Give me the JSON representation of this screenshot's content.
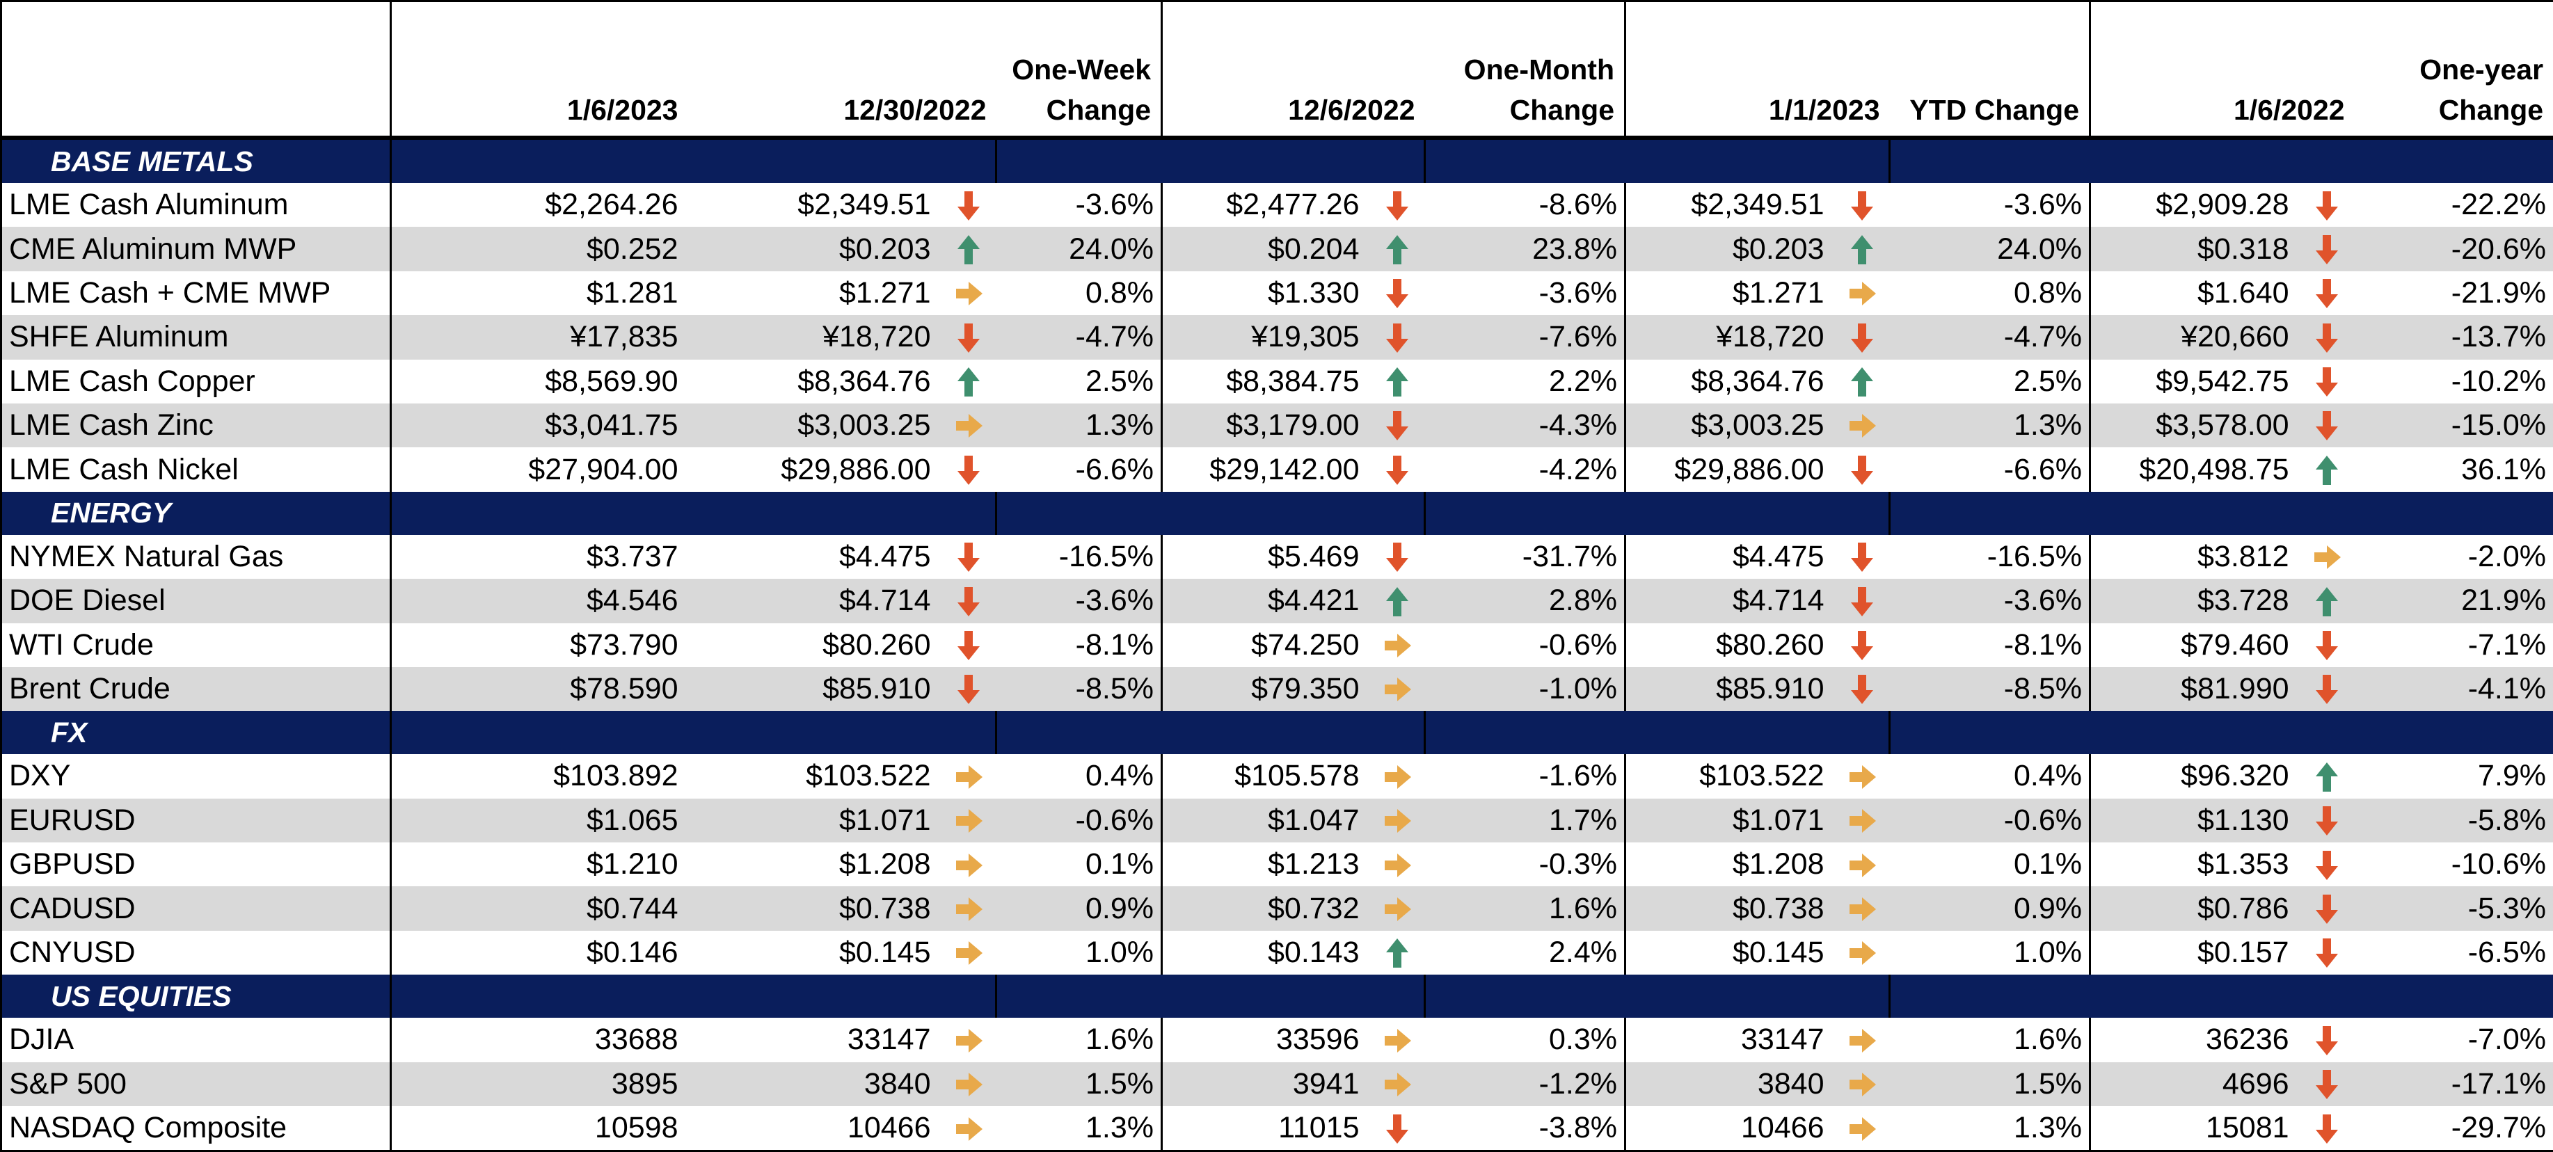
{
  "headers": {
    "col1": "1/6/2023",
    "col2": "12/30/2022",
    "col3_l1": "One-Week",
    "col3_l2": "Change",
    "col4": "12/6/2022",
    "col5_l1": "One-Month",
    "col5_l2": "Change",
    "col6": "1/1/2023",
    "col7": "YTD Change",
    "col8": "1/6/2022",
    "col9_l1": "One-year",
    "col9_l2": "Change"
  },
  "colors": {
    "navy": "#0a1e5c",
    "down": "#e0532b",
    "up": "#3f8f6e",
    "flat": "#e8a94a",
    "band": "#d9d9d9"
  },
  "sections": [
    {
      "title": "BASE METALS",
      "rows": [
        {
          "name": "LME Cash Aluminum",
          "v1": "$2,264.26",
          "v2": "$2,349.51",
          "a1": "down",
          "p1": "-3.6%",
          "v3": "$2,477.26",
          "a2": "down",
          "p2": "-8.6%",
          "v4": "$2,349.51",
          "a3": "down",
          "p3": "-3.6%",
          "v5": "$2,909.28",
          "a4": "down",
          "p4": "-22.2%"
        },
        {
          "name": "CME Aluminum MWP",
          "v1": "$0.252",
          "v2": "$0.203",
          "a1": "up",
          "p1": "24.0%",
          "v3": "$0.204",
          "a2": "up",
          "p2": "23.8%",
          "v4": "$0.203",
          "a3": "up",
          "p3": "24.0%",
          "v5": "$0.318",
          "a4": "down",
          "p4": "-20.6%"
        },
        {
          "name": "LME Cash + CME MWP",
          "v1": "$1.281",
          "v2": "$1.271",
          "a1": "flat",
          "p1": "0.8%",
          "v3": "$1.330",
          "a2": "down",
          "p2": "-3.6%",
          "v4": "$1.271",
          "a3": "flat",
          "p3": "0.8%",
          "v5": "$1.640",
          "a4": "down",
          "p4": "-21.9%"
        },
        {
          "name": "SHFE Aluminum",
          "v1": "¥17,835",
          "v2": "¥18,720",
          "a1": "down",
          "p1": "-4.7%",
          "v3": "¥19,305",
          "a2": "down",
          "p2": "-7.6%",
          "v4": "¥18,720",
          "a3": "down",
          "p3": "-4.7%",
          "v5": "¥20,660",
          "a4": "down",
          "p4": "-13.7%"
        },
        {
          "name": "LME Cash Copper",
          "v1": "$8,569.90",
          "v2": "$8,364.76",
          "a1": "up",
          "p1": "2.5%",
          "v3": "$8,384.75",
          "a2": "up",
          "p2": "2.2%",
          "v4": "$8,364.76",
          "a3": "up",
          "p3": "2.5%",
          "v5": "$9,542.75",
          "a4": "down",
          "p4": "-10.2%"
        },
        {
          "name": "LME Cash Zinc",
          "v1": "$3,041.75",
          "v2": "$3,003.25",
          "a1": "flat",
          "p1": "1.3%",
          "v3": "$3,179.00",
          "a2": "down",
          "p2": "-4.3%",
          "v4": "$3,003.25",
          "a3": "flat",
          "p3": "1.3%",
          "v5": "$3,578.00",
          "a4": "down",
          "p4": "-15.0%"
        },
        {
          "name": "LME Cash Nickel",
          "v1": "$27,904.00",
          "v2": "$29,886.00",
          "a1": "down",
          "p1": "-6.6%",
          "v3": "$29,142.00",
          "a2": "down",
          "p2": "-4.2%",
          "v4": "$29,886.00",
          "a3": "down",
          "p3": "-6.6%",
          "v5": "$20,498.75",
          "a4": "up",
          "p4": "36.1%"
        }
      ]
    },
    {
      "title": "ENERGY",
      "rows": [
        {
          "name": "NYMEX Natural Gas",
          "v1": "$3.737",
          "v2": "$4.475",
          "a1": "down",
          "p1": "-16.5%",
          "v3": "$5.469",
          "a2": "down",
          "p2": "-31.7%",
          "v4": "$4.475",
          "a3": "down",
          "p3": "-16.5%",
          "v5": "$3.812",
          "a4": "flat",
          "p4": "-2.0%"
        },
        {
          "name": "DOE Diesel",
          "v1": "$4.546",
          "v2": "$4.714",
          "a1": "down",
          "p1": "-3.6%",
          "v3": "$4.421",
          "a2": "up",
          "p2": "2.8%",
          "v4": "$4.714",
          "a3": "down",
          "p3": "-3.6%",
          "v5": "$3.728",
          "a4": "up",
          "p4": "21.9%"
        },
        {
          "name": "WTI Crude",
          "v1": "$73.790",
          "v2": "$80.260",
          "a1": "down",
          "p1": "-8.1%",
          "v3": "$74.250",
          "a2": "flat",
          "p2": "-0.6%",
          "v4": "$80.260",
          "a3": "down",
          "p3": "-8.1%",
          "v5": "$79.460",
          "a4": "down",
          "p4": "-7.1%"
        },
        {
          "name": "Brent Crude",
          "v1": "$78.590",
          "v2": "$85.910",
          "a1": "down",
          "p1": "-8.5%",
          "v3": "$79.350",
          "a2": "flat",
          "p2": "-1.0%",
          "v4": "$85.910",
          "a3": "down",
          "p3": "-8.5%",
          "v5": "$81.990",
          "a4": "down",
          "p4": "-4.1%"
        }
      ]
    },
    {
      "title": "FX",
      "rows": [
        {
          "name": "DXY",
          "v1": "$103.892",
          "v2": "$103.522",
          "a1": "flat",
          "p1": "0.4%",
          "v3": "$105.578",
          "a2": "flat",
          "p2": "-1.6%",
          "v4": "$103.522",
          "a3": "flat",
          "p3": "0.4%",
          "v5": "$96.320",
          "a4": "up",
          "p4": "7.9%"
        },
        {
          "name": "EURUSD",
          "v1": "$1.065",
          "v2": "$1.071",
          "a1": "flat",
          "p1": "-0.6%",
          "v3": "$1.047",
          "a2": "flat",
          "p2": "1.7%",
          "v4": "$1.071",
          "a3": "flat",
          "p3": "-0.6%",
          "v5": "$1.130",
          "a4": "down",
          "p4": "-5.8%"
        },
        {
          "name": "GBPUSD",
          "v1": "$1.210",
          "v2": "$1.208",
          "a1": "flat",
          "p1": "0.1%",
          "v3": "$1.213",
          "a2": "flat",
          "p2": "-0.3%",
          "v4": "$1.208",
          "a3": "flat",
          "p3": "0.1%",
          "v5": "$1.353",
          "a4": "down",
          "p4": "-10.6%"
        },
        {
          "name": "CADUSD",
          "v1": "$0.744",
          "v2": "$0.738",
          "a1": "flat",
          "p1": "0.9%",
          "v3": "$0.732",
          "a2": "flat",
          "p2": "1.6%",
          "v4": "$0.738",
          "a3": "flat",
          "p3": "0.9%",
          "v5": "$0.786",
          "a4": "down",
          "p4": "-5.3%"
        },
        {
          "name": "CNYUSD",
          "v1": "$0.146",
          "v2": "$0.145",
          "a1": "flat",
          "p1": "1.0%",
          "v3": "$0.143",
          "a2": "up",
          "p2": "2.4%",
          "v4": "$0.145",
          "a3": "flat",
          "p3": "1.0%",
          "v5": "$0.157",
          "a4": "down",
          "p4": "-6.5%"
        }
      ]
    },
    {
      "title": "US EQUITIES",
      "rows": [
        {
          "name": "DJIA",
          "v1": "33688",
          "v2": "33147",
          "a1": "flat",
          "p1": "1.6%",
          "v3": "33596",
          "a2": "flat",
          "p2": "0.3%",
          "v4": "33147",
          "a3": "flat",
          "p3": "1.6%",
          "v5": "36236",
          "a4": "down",
          "p4": "-7.0%"
        },
        {
          "name": "S&P 500",
          "v1": "3895",
          "v2": "3840",
          "a1": "flat",
          "p1": "1.5%",
          "v3": "3941",
          "a2": "flat",
          "p2": "-1.2%",
          "v4": "3840",
          "a3": "flat",
          "p3": "1.5%",
          "v5": "4696",
          "a4": "down",
          "p4": "-17.1%"
        },
        {
          "name": "NASDAQ Composite",
          "v1": "10598",
          "v2": "10466",
          "a1": "flat",
          "p1": "1.3%",
          "v3": "11015",
          "a2": "down",
          "p2": "-3.8%",
          "v4": "10466",
          "a3": "flat",
          "p3": "1.3%",
          "v5": "15081",
          "a4": "down",
          "p4": "-29.7%"
        }
      ]
    }
  ]
}
